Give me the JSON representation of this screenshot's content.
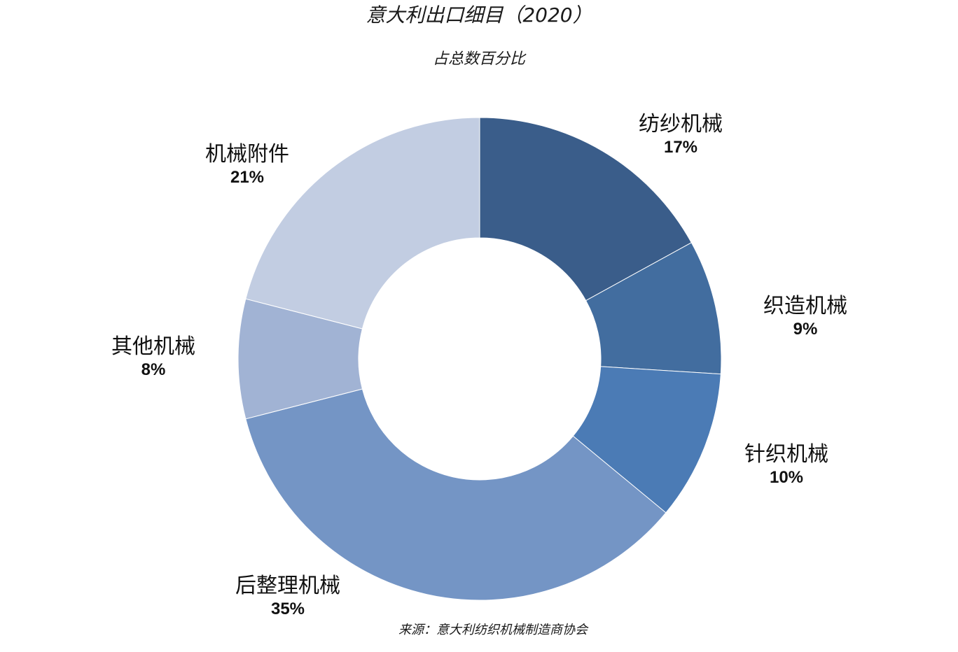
{
  "chart_data": {
    "type": "pie",
    "title": "意大利出口细目（2020）",
    "subtitle": "占总数百分比",
    "source": "来源：意大利纺织机械制造商协会",
    "unit": "%",
    "slices": [
      {
        "label": "纺纱机械",
        "value": 17,
        "value_text": "17%",
        "color": "#3a5d8a"
      },
      {
        "label": "织造机械",
        "value": 9,
        "value_text": "9%",
        "color": "#426d9f"
      },
      {
        "label": "针织机械",
        "value": 10,
        "value_text": "10%",
        "color": "#4b7bb5"
      },
      {
        "label": "后整理机械",
        "value": 35,
        "value_text": "35%",
        "color": "#7495c5"
      },
      {
        "label": "其他机械",
        "value": 8,
        "value_text": "8%",
        "color": "#a1b3d4"
      },
      {
        "label": "机械附件",
        "value": 21,
        "value_text": "21%",
        "color": "#c2cde2"
      }
    ],
    "donut": true,
    "start_angle": "12 o'clock",
    "direction": "clockwise"
  }
}
